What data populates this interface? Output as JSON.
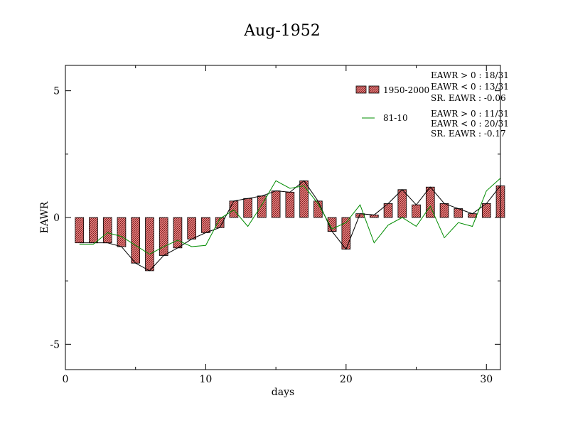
{
  "chart_data": {
    "type": "bar",
    "title": "Aug-1952",
    "xlabel": "days",
    "ylabel": "EAWR",
    "xlim": [
      0,
      31
    ],
    "ylim": [
      -6,
      6
    ],
    "x_ticks": [
      0,
      10,
      20,
      30
    ],
    "y_ticks": [
      -5,
      0,
      5
    ],
    "x": [
      1,
      2,
      3,
      4,
      5,
      6,
      7,
      8,
      9,
      10,
      11,
      12,
      13,
      14,
      15,
      16,
      17,
      18,
      19,
      20,
      21,
      22,
      23,
      24,
      25,
      26,
      27,
      28,
      29,
      30,
      31
    ],
    "series": [
      {
        "name": "1950-2000",
        "kind": "bar",
        "fill": "#e08080",
        "values": [
          -1.0,
          -1.0,
          -1.0,
          -1.15,
          -1.8,
          -2.1,
          -1.5,
          -1.2,
          -0.85,
          -0.6,
          -0.4,
          0.65,
          0.75,
          0.85,
          1.05,
          1.0,
          1.45,
          0.65,
          -0.55,
          -1.25,
          0.15,
          0.1,
          0.55,
          1.1,
          0.5,
          1.2,
          0.55,
          0.35,
          0.15,
          0.55,
          1.25
        ]
      },
      {
        "name": "81-10",
        "kind": "line",
        "color": "#008c00",
        "values": [
          -1.05,
          -1.05,
          -0.6,
          -0.75,
          -1.1,
          -1.45,
          -1.15,
          -0.9,
          -1.15,
          -1.1,
          -0.05,
          0.3,
          -0.35,
          0.5,
          1.45,
          1.15,
          1.25,
          0.55,
          -0.45,
          -0.2,
          0.5,
          -1.0,
          -0.3,
          0.0,
          -0.35,
          0.45,
          -0.8,
          -0.2,
          -0.35,
          1.05,
          1.55
        ]
      }
    ],
    "legend_position": "top-right",
    "stats": [
      [
        "EAWR > 0 : 18/31",
        "EAWR < 0 : 13/31",
        "SR. EAWR : -0.06"
      ],
      [
        "EAWR > 0 : 11/31",
        "EAWR < 0 : 20/31",
        "SR. EAWR : -0.17"
      ]
    ]
  }
}
